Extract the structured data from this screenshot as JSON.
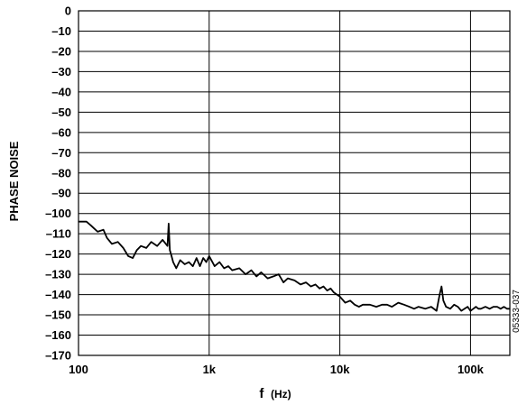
{
  "chart_data": {
    "type": "line",
    "xscale": "log",
    "xlim": [
      100,
      200000
    ],
    "ylim": [
      -170,
      0
    ],
    "grid": true,
    "ylabel": "PHASE NOISE",
    "xlabel_main": "f",
    "xlabel_unit": "(Hz)",
    "xticks": [
      {
        "value": 100,
        "label": "100"
      },
      {
        "value": 1000,
        "label": "1k"
      },
      {
        "value": 10000,
        "label": "10k"
      },
      {
        "value": 100000,
        "label": "100k"
      }
    ],
    "yticks": [
      {
        "value": 0,
        "label": "0"
      },
      {
        "value": -10,
        "label": "–10"
      },
      {
        "value": -20,
        "label": "–20"
      },
      {
        "value": -30,
        "label": "–30"
      },
      {
        "value": -40,
        "label": "–40"
      },
      {
        "value": -50,
        "label": "–50"
      },
      {
        "value": -60,
        "label": "–60"
      },
      {
        "value": -70,
        "label": "–70"
      },
      {
        "value": -80,
        "label": "–80"
      },
      {
        "value": -90,
        "label": "–90"
      },
      {
        "value": -100,
        "label": "–100"
      },
      {
        "value": -110,
        "label": "–110"
      },
      {
        "value": -120,
        "label": "–120"
      },
      {
        "value": -130,
        "label": "–130"
      },
      {
        "value": -140,
        "label": "–140"
      },
      {
        "value": -150,
        "label": "–150"
      },
      {
        "value": -160,
        "label": "–160"
      },
      {
        "value": -170,
        "label": "–170"
      }
    ],
    "series": [
      {
        "x": [
          100,
          115,
          125,
          140,
          155,
          165,
          180,
          200,
          220,
          240,
          260,
          280,
          300,
          330,
          360,
          400,
          440,
          480,
          490,
          500,
          510,
          530,
          560,
          600,
          650,
          700,
          750,
          800,
          850,
          900,
          950,
          1000,
          1100,
          1200,
          1300,
          1400,
          1500,
          1700,
          1900,
          2100,
          2300,
          2500,
          2800,
          3100,
          3400,
          3700,
          4000,
          4500,
          5000,
          5500,
          6000,
          6500,
          7000,
          7500,
          8000,
          8500,
          9000,
          9500,
          10000,
          11000,
          12000,
          13000,
          14000,
          15000,
          17000,
          19000,
          21000,
          23000,
          25000,
          28000,
          31000,
          34000,
          37000,
          40000,
          45000,
          50000,
          55000,
          58000,
          60000,
          62000,
          65000,
          70000,
          75000,
          80000,
          85000,
          90000,
          95000,
          100000,
          105000,
          110000,
          115000,
          120000,
          130000,
          140000,
          150000,
          160000,
          170000,
          180000,
          190000,
          200000
        ],
        "values": [
          -104,
          -104,
          -106,
          -109,
          -108,
          -112,
          -115,
          -114,
          -117,
          -121,
          -122,
          -118,
          -116,
          -117,
          -114,
          -116,
          -113,
          -116,
          -105,
          -118,
          -120,
          -124,
          -127,
          -123,
          -125,
          -124,
          -126,
          -122,
          -126,
          -122,
          -124,
          -121,
          -126,
          -124,
          -127,
          -126,
          -128,
          -127,
          -130,
          -128,
          -131,
          -129,
          -132,
          -131,
          -130,
          -134,
          -132,
          -133,
          -135,
          -134,
          -136,
          -135,
          -137,
          -136,
          -138,
          -137,
          -139,
          -140,
          -141,
          -144,
          -143,
          -145,
          -146,
          -145,
          -145,
          -146,
          -145,
          -145,
          -146,
          -144,
          -145,
          -146,
          -147,
          -146,
          -147,
          -146,
          -148,
          -140,
          -136,
          -143,
          -146,
          -147,
          -145,
          -146,
          -148,
          -147,
          -146,
          -148,
          -147,
          -146,
          -147,
          -147,
          -146,
          -147,
          -146,
          -146,
          -147,
          -146,
          -147,
          -147
        ]
      }
    ],
    "figure_code": "05333-037"
  }
}
